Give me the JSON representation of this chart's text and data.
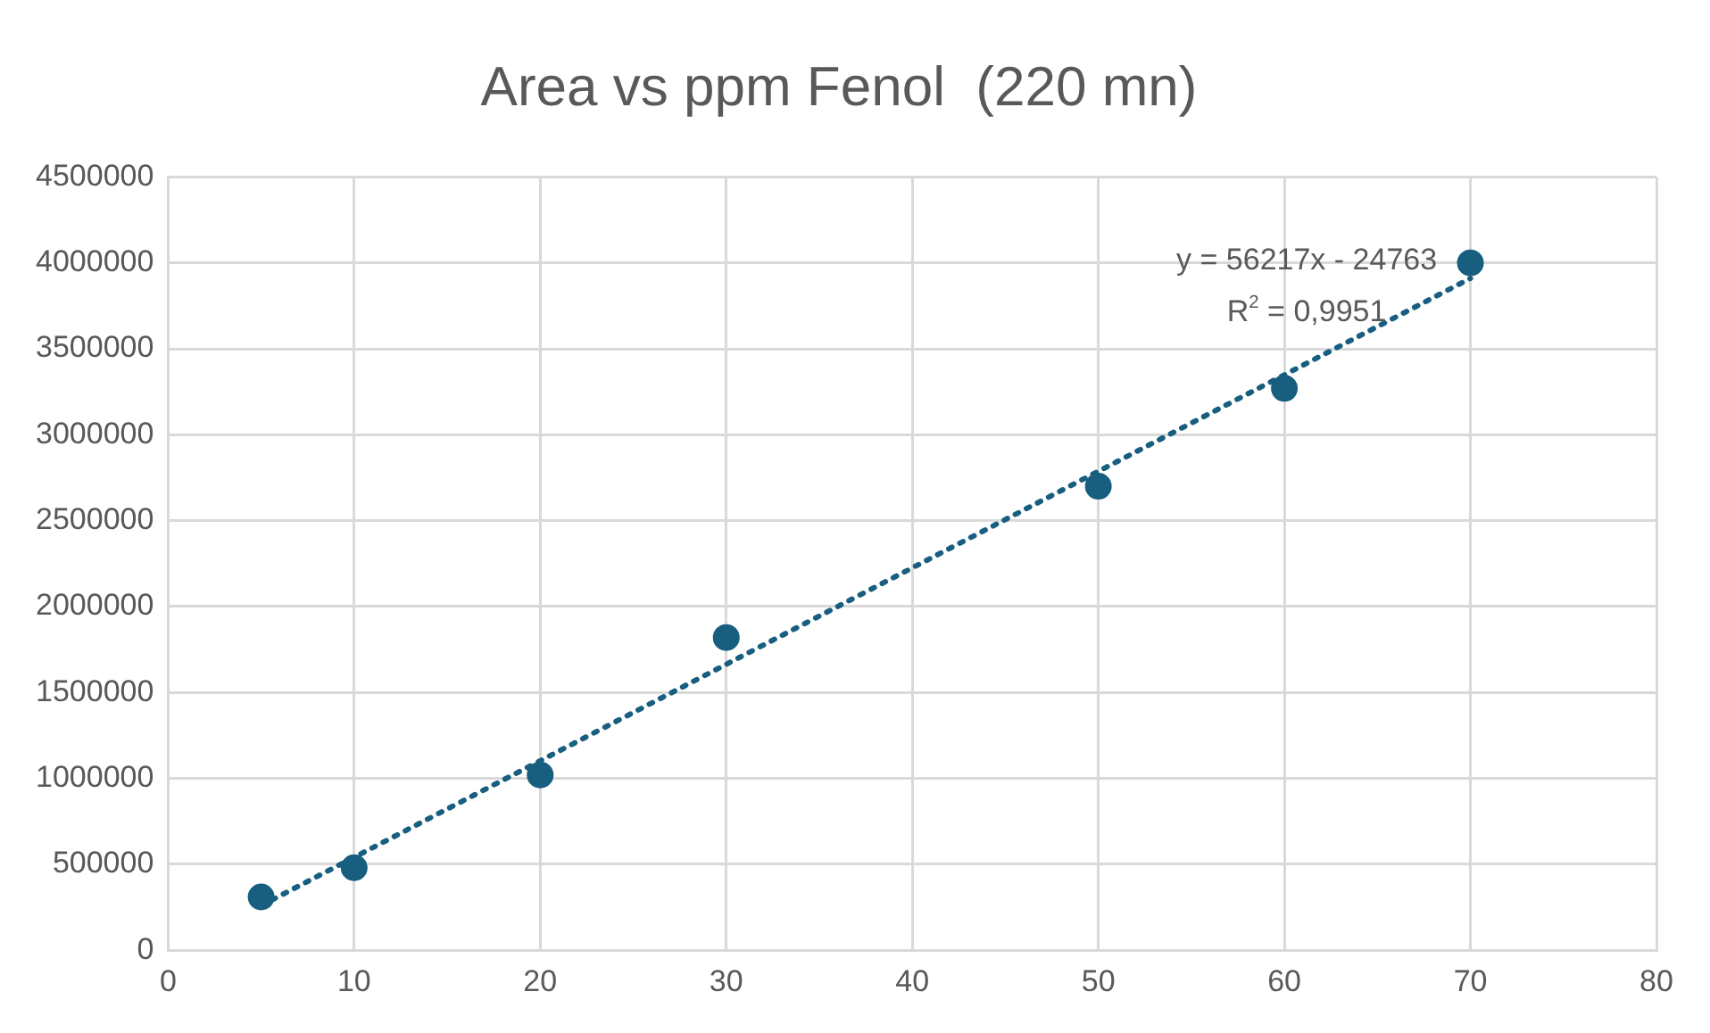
{
  "chart_data": {
    "type": "scatter",
    "title": "Area vs ppm Fenol  (220 mn)",
    "series": [
      {
        "type": "scatter",
        "color": "#175e7f",
        "x": [
          5,
          10,
          20,
          30,
          50,
          60,
          70
        ],
        "values": [
          310000,
          480000,
          1020000,
          1820000,
          2700000,
          3270000,
          4000000
        ],
        "marker": "circle"
      },
      {
        "type": "line",
        "color": "#175e7f",
        "x": [
          5,
          70
        ],
        "values": [
          260000,
          3910000
        ],
        "line_style": "dotted",
        "marker": "none"
      }
    ],
    "xlim": [
      0,
      80
    ],
    "xticks": [
      0,
      10,
      20,
      30,
      40,
      50,
      60,
      70,
      80
    ],
    "ylim": [
      0,
      4500000
    ],
    "yticks": [
      0,
      500000,
      1000000,
      1500000,
      2000000,
      2500000,
      3000000,
      3500000,
      4000000,
      4500000
    ],
    "grid": true,
    "legend": false,
    "annotations": [
      "y = 56217x - 24763",
      "R$^{2}$ = 0,9951"
    ]
  }
}
